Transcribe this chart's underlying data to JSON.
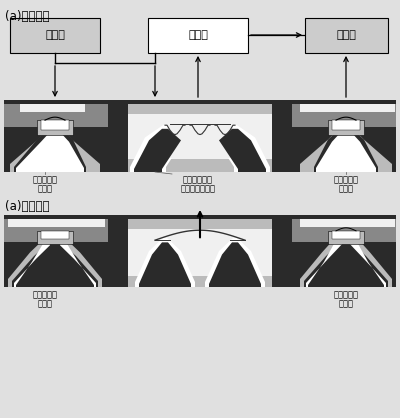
{
  "title_top": "(a)關閉狀態",
  "title_bottom": "(a)開啟狀態",
  "box1_text": "丁烷槽",
  "box2_text": "噴射器",
  "box3_text": "燃燒器",
  "label_left_closed_1": "靜電驅動閥",
  "label_left_closed_2": "（開）",
  "label_mid_closed_1": "皺折加工隔膜",
  "label_mid_closed_2": "（流體驅動閥）",
  "label_right_closed_1": "靜電驅動閥",
  "label_right_closed_2": "（關）",
  "label_left_open_1": "靜電驅動閥",
  "label_left_open_2": "（關）",
  "label_right_open_1": "靜電驅動閥",
  "label_right_open_2": "（開）",
  "bg": "#e8e8e8",
  "dark": "#2a2a2a",
  "mid_gray": "#888888",
  "light_gray": "#bbbbbb",
  "box_gray": "#cccccc",
  "white": "#ffffff",
  "near_white": "#f0f0f0"
}
